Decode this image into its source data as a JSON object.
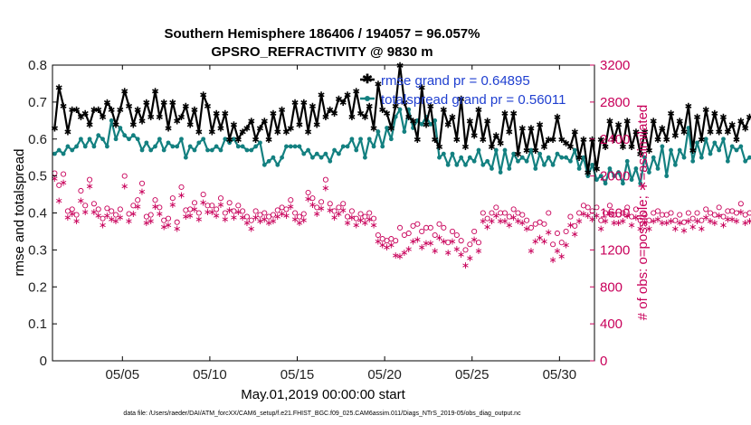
{
  "chart_data": {
    "type": "line",
    "title_line1": "Southern Hemisphere 186406 / 194057 = 96.057%",
    "title_line2": "GPSRO_REFRACTIVITY @ 9830 m",
    "xlabel": "May.01,2019 00:00:00 start",
    "ylabel_left": "rmse and totalspread",
    "ylabel_right": "# of obs: o=possible; ∗=assimilated",
    "footer": "data file: /Users/raeder/DAI/ATM_forcXX/CAM6_setup/f.e21.FHIST_BGC.f09_025.CAM6assim.011/Diags_NTrS_2019-05/obs_diag_output.nc",
    "x_range_days": [
      1,
      32
    ],
    "x_ticks": [
      {
        "day": 5,
        "label": "05/05"
      },
      {
        "day": 10,
        "label": "05/10"
      },
      {
        "day": 15,
        "label": "05/15"
      },
      {
        "day": 20,
        "label": "05/20"
      },
      {
        "day": 25,
        "label": "05/25"
      },
      {
        "day": 30,
        "label": "05/30"
      }
    ],
    "ylim_left": [
      0,
      0.8
    ],
    "yticks_left": [
      "0",
      "0.1",
      "0.2",
      "0.3",
      "0.4",
      "0.5",
      "0.6",
      "0.7",
      "0.8"
    ],
    "ylim_right": [
      0,
      3200
    ],
    "yticks_right": [
      "0",
      "400",
      "800",
      "1200",
      "1600",
      "2000",
      "2400",
      "2800",
      "3200"
    ],
    "legend": {
      "location": "top-right",
      "rmse_label": "rmse grand pr = 0.64895",
      "spread_label": "totalspread grand pr = 0.56011"
    },
    "colors": {
      "rmse": "#000000",
      "spread": "#138080",
      "obs": "#c8005a",
      "legend_text": "#1f3fd0"
    },
    "points_per_day": 4,
    "series": [
      {
        "name": "rmse",
        "values": [
          0.63,
          0.74,
          0.69,
          0.62,
          0.68,
          0.68,
          0.66,
          0.67,
          0.64,
          0.68,
          0.68,
          0.66,
          0.7,
          0.68,
          0.64,
          0.68,
          0.73,
          0.69,
          0.64,
          0.68,
          0.65,
          0.7,
          0.66,
          0.73,
          0.66,
          0.7,
          0.63,
          0.7,
          0.65,
          0.66,
          0.69,
          0.64,
          0.68,
          0.62,
          0.72,
          0.69,
          0.62,
          0.67,
          0.63,
          0.67,
          0.6,
          0.64,
          0.6,
          0.62,
          0.63,
          0.65,
          0.6,
          0.63,
          0.65,
          0.6,
          0.67,
          0.62,
          0.68,
          0.62,
          0.63,
          0.7,
          0.64,
          0.7,
          0.62,
          0.69,
          0.64,
          0.72,
          0.66,
          0.68,
          0.67,
          0.71,
          0.7,
          0.72,
          0.66,
          0.73,
          0.67,
          0.66,
          0.69,
          0.63,
          0.75,
          0.68,
          0.67,
          0.63,
          0.69,
          0.8,
          0.7,
          0.66,
          0.65,
          0.6,
          0.74,
          0.64,
          0.69,
          0.6,
          0.58,
          0.68,
          0.64,
          0.66,
          0.6,
          0.71,
          0.58,
          0.65,
          0.61,
          0.68,
          0.6,
          0.65,
          0.58,
          0.61,
          0.59,
          0.67,
          0.62,
          0.67,
          0.56,
          0.63,
          0.57,
          0.63,
          0.57,
          0.64,
          0.58,
          0.6,
          0.6,
          0.66,
          0.6,
          0.59,
          0.58,
          0.62,
          0.55,
          0.6,
          0.51,
          0.6,
          0.52,
          0.6,
          0.58,
          0.65,
          0.6,
          0.64,
          0.58,
          0.65,
          0.58,
          0.62,
          0.56,
          0.62,
          0.57,
          0.65,
          0.6,
          0.63,
          0.6,
          0.67,
          0.61,
          0.65,
          0.62,
          0.69,
          0.57,
          0.66,
          0.6,
          0.68,
          0.62,
          0.67,
          0.62,
          0.66,
          0.62,
          0.64,
          0.6,
          0.65,
          0.63,
          0.66
        ]
      },
      {
        "name": "totalspread",
        "values": [
          0.56,
          0.57,
          0.56,
          0.58,
          0.57,
          0.58,
          0.6,
          0.58,
          0.6,
          0.58,
          0.61,
          0.6,
          0.58,
          0.65,
          0.6,
          0.63,
          0.61,
          0.6,
          0.61,
          0.6,
          0.57,
          0.59,
          0.57,
          0.58,
          0.6,
          0.57,
          0.59,
          0.58,
          0.58,
          0.6,
          0.55,
          0.58,
          0.57,
          0.59,
          0.6,
          0.57,
          0.57,
          0.58,
          0.57,
          0.6,
          0.59,
          0.6,
          0.58,
          0.58,
          0.57,
          0.57,
          0.58,
          0.59,
          0.53,
          0.54,
          0.55,
          0.53,
          0.55,
          0.58,
          0.58,
          0.58,
          0.58,
          0.56,
          0.57,
          0.55,
          0.56,
          0.55,
          0.56,
          0.54,
          0.57,
          0.56,
          0.58,
          0.58,
          0.6,
          0.57,
          0.6,
          0.55,
          0.6,
          0.58,
          0.62,
          0.58,
          0.63,
          0.6,
          0.66,
          0.68,
          0.62,
          0.68,
          0.63,
          0.65,
          0.64,
          0.66,
          0.64,
          0.65,
          0.55,
          0.56,
          0.53,
          0.56,
          0.53,
          0.55,
          0.53,
          0.55,
          0.54,
          0.57,
          0.53,
          0.54,
          0.52,
          0.57,
          0.51,
          0.57,
          0.52,
          0.56,
          0.54,
          0.55,
          0.54,
          0.57,
          0.52,
          0.56,
          0.53,
          0.55,
          0.53,
          0.56,
          0.55,
          0.55,
          0.54,
          0.57,
          0.52,
          0.55,
          0.5,
          0.53,
          0.49,
          0.5,
          0.48,
          0.52,
          0.5,
          0.51,
          0.48,
          0.54,
          0.49,
          0.52,
          0.48,
          0.55,
          0.51,
          0.55,
          0.52,
          0.58,
          0.5,
          0.57,
          0.53,
          0.57,
          0.55,
          0.63,
          0.54,
          0.59,
          0.55,
          0.6,
          0.56,
          0.59,
          0.57,
          0.6,
          0.54,
          0.58,
          0.57,
          0.58,
          0.54,
          0.55
        ]
      },
      {
        "name": "obs_possible",
        "values": [
          2030,
          1900,
          2020,
          1620,
          1640,
          1580,
          1840,
          1680,
          1960,
          1700,
          1640,
          1540,
          1650,
          1620,
          1580,
          1640,
          2000,
          1590,
          1680,
          1740,
          1920,
          1560,
          1580,
          1740,
          1660,
          1520,
          1540,
          1760,
          1500,
          1880,
          1630,
          1640,
          1710,
          1600,
          1800,
          1680,
          1680,
          1640,
          1760,
          1600,
          1710,
          1620,
          1680,
          1620,
          1560,
          1520,
          1620,
          1580,
          1600,
          1560,
          1580,
          1630,
          1660,
          1640,
          1740,
          1600,
          1560,
          1590,
          1820,
          1760,
          1660,
          1720,
          1960,
          1700,
          1620,
          1660,
          1700,
          1560,
          1620,
          1540,
          1590,
          1560,
          1600,
          1540,
          1360,
          1320,
          1300,
          1320,
          1300,
          1440,
          1360,
          1380,
          1460,
          1480,
          1400,
          1440,
          1440,
          1360,
          1480,
          1440,
          1280,
          1400,
          1360,
          1300,
          1200,
          1260,
          1400,
          1280,
          1600,
          1540,
          1600,
          1660,
          1600,
          1600,
          1560,
          1640,
          1600,
          1580,
          1520,
          1440,
          1480,
          1500,
          1480,
          1600,
          1260,
          1380,
          1280,
          1400,
          1560,
          1460,
          1600,
          1680,
          1660,
          1620,
          1660,
          1520,
          1600,
          1680,
          1580,
          1580,
          1600,
          1660,
          1560,
          1640,
          1520,
          1580,
          1520,
          1600,
          1620,
          1580,
          1580,
          1600,
          1520,
          1580,
          1500,
          1600,
          1540,
          1600,
          1520,
          1640,
          1600,
          1580,
          1660,
          1560,
          1620,
          1620,
          1600,
          1700,
          1580,
          1600,
          1640,
          1560,
          1500,
          1480
        ]
      },
      {
        "name": "obs_assimilated",
        "values": [
          1980,
          1740,
          1940,
          1560,
          1600,
          1520,
          1740,
          1620,
          1900,
          1620,
          1580,
          1480,
          1580,
          1540,
          1520,
          1560,
          1900,
          1520,
          1600,
          1680,
          1840,
          1500,
          1520,
          1680,
          1600,
          1460,
          1480,
          1700,
          1440,
          1800,
          1570,
          1580,
          1650,
          1540,
          1720,
          1620,
          1620,
          1580,
          1700,
          1540,
          1640,
          1560,
          1620,
          1560,
          1500,
          1440,
          1560,
          1520,
          1540,
          1500,
          1520,
          1570,
          1600,
          1580,
          1680,
          1540,
          1500,
          1530,
          1760,
          1700,
          1600,
          1660,
          1880,
          1640,
          1560,
          1600,
          1640,
          1500,
          1560,
          1480,
          1530,
          1500,
          1540,
          1480,
          1300,
          1260,
          1240,
          1260,
          1150,
          1140,
          1180,
          1220,
          1300,
          1320,
          1240,
          1280,
          1280,
          1200,
          1340,
          1300,
          1180,
          1300,
          1220,
          1160,
          1040,
          1120,
          1320,
          1200,
          1520,
          1460,
          1520,
          1580,
          1520,
          1520,
          1480,
          1560,
          1520,
          1500,
          1440,
          1200,
          1300,
          1340,
          1300,
          1400,
          1100,
          1200,
          1140,
          1260,
          1480,
          1380,
          1520,
          1600,
          1580,
          1540,
          1580,
          1440,
          1520,
          1600,
          1500,
          1500,
          1520,
          1580,
          1480,
          1560,
          1440,
          1500,
          1440,
          1520,
          1540,
          1500,
          1500,
          1520,
          1440,
          1500,
          1420,
          1520,
          1460,
          1520,
          1440,
          1560,
          1520,
          1500,
          1580,
          1480,
          1540,
          1540,
          1520,
          1620,
          1500,
          1520,
          1560,
          1480,
          1420,
          1400
        ]
      }
    ]
  }
}
